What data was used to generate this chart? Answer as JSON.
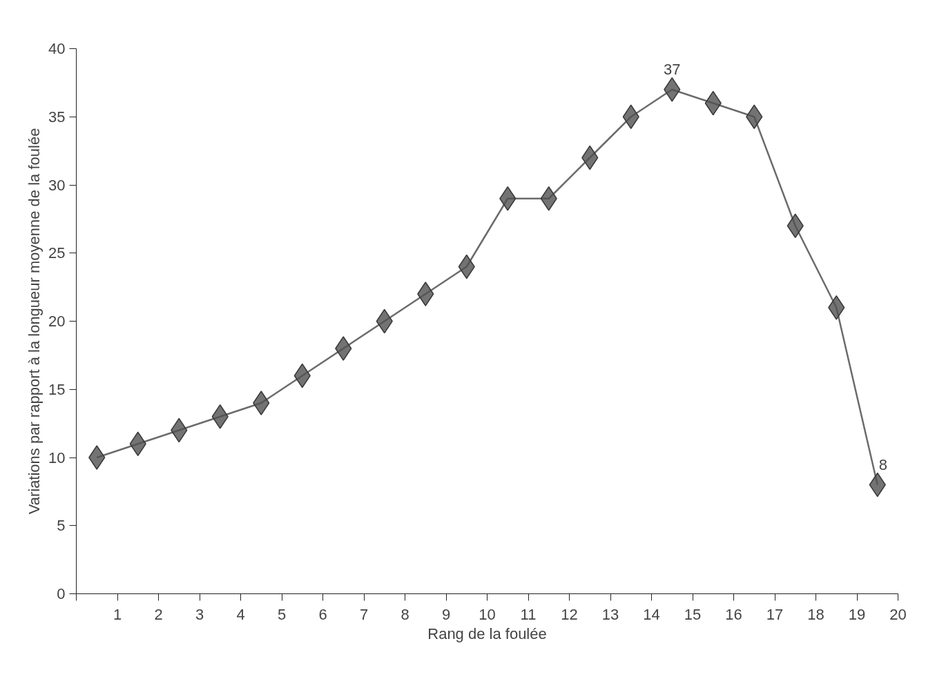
{
  "chart_data": {
    "type": "line",
    "xlabel": "Rang de la foulée",
    "ylabel": "Variations par rapport à la longueur moyenne de la foulée",
    "x": [
      0.5,
      1.5,
      2.5,
      3.5,
      4.5,
      5.5,
      6.5,
      7.5,
      8.5,
      9.5,
      10.5,
      11.5,
      12.5,
      13.5,
      14.5,
      15.5,
      16.5,
      17.5,
      18.5,
      19.5
    ],
    "series": [
      {
        "color": "#6b6b6b",
        "values": [
          10,
          11,
          12,
          13,
          14,
          16,
          18,
          20,
          22,
          24,
          29,
          29,
          32,
          35,
          37,
          36,
          35,
          27,
          21,
          8
        ]
      }
    ],
    "xlim": [
      0,
      20
    ],
    "ylim": [
      0,
      40
    ],
    "xticks": [
      {
        "value": 0,
        "label": null
      },
      1,
      2,
      3,
      4,
      5,
      6,
      7,
      8,
      9,
      10,
      11,
      12,
      13,
      14,
      15,
      16,
      17,
      18,
      19,
      20
    ],
    "yticks": [
      0,
      5,
      10,
      15,
      20,
      25,
      30,
      35,
      40
    ],
    "annotations": [
      {
        "text": "37",
        "x": 14.5,
        "y": 37
      },
      {
        "text": "8",
        "x": 19.5,
        "y": 8
      }
    ],
    "marker": "diamond",
    "line_style": "solid",
    "grid": false
  }
}
